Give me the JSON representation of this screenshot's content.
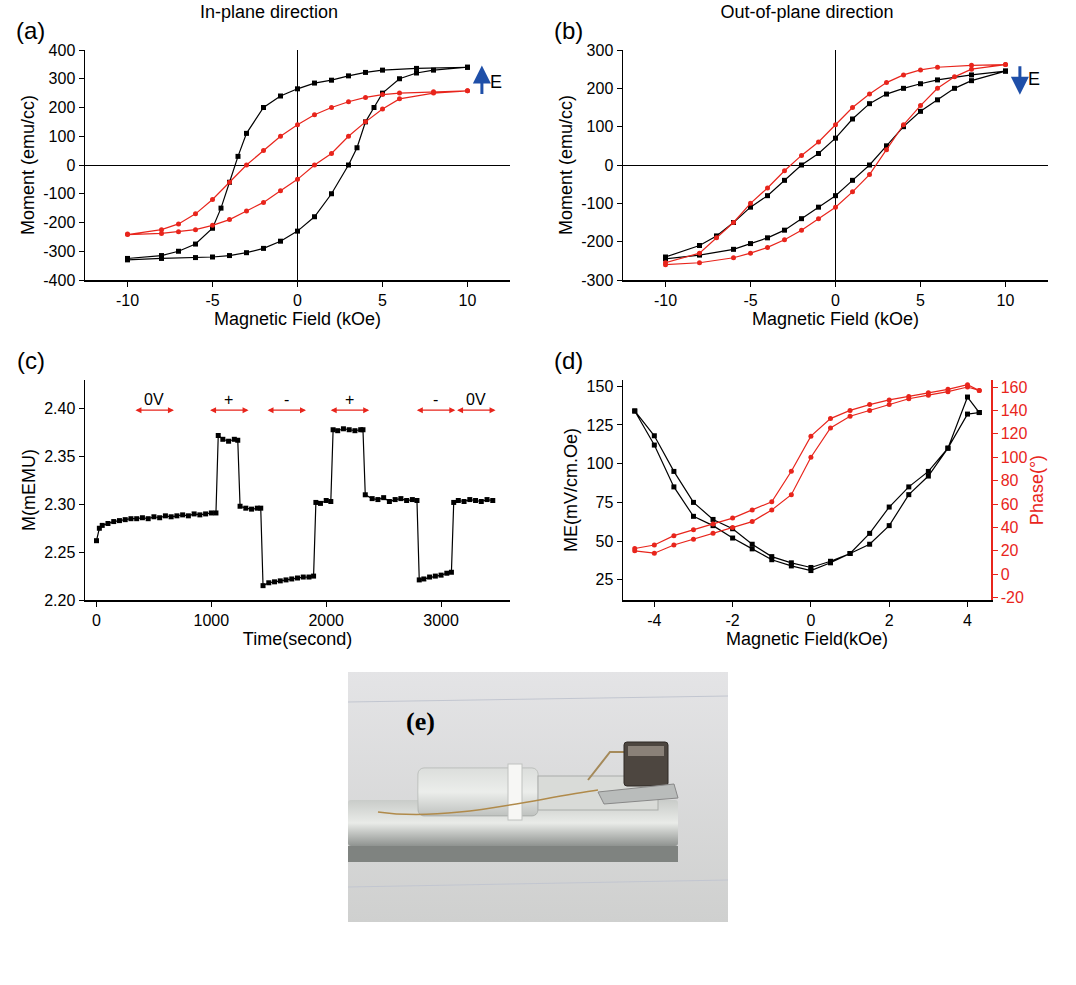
{
  "chart_data": [
    {
      "type": "line",
      "panel": "(a)",
      "title": "In-plane direction",
      "x_label": "Magnetic Field (kOe)",
      "y_label": "Moment (emu/cc)",
      "xlim": [
        -12.5,
        12.5
      ],
      "xticks": [
        -10,
        -5,
        0,
        5,
        10
      ],
      "ylim": [
        -400,
        400
      ],
      "yticks": [
        -400,
        -300,
        -200,
        -100,
        0,
        100,
        200,
        300,
        400
      ],
      "grid": false,
      "annotations": [
        {
          "text": "E",
          "x": 11.2,
          "y": 290
        }
      ],
      "series": [
        {
          "color": "#000000",
          "marker": "square",
          "x": [
            10,
            7,
            5,
            4,
            3,
            2,
            1,
            0,
            -1,
            -2,
            -3,
            -3.5,
            -4,
            -4.5,
            -5,
            -6,
            -7,
            -8,
            -10,
            -10,
            -8,
            -6,
            -5,
            -4,
            -3,
            -2,
            -1,
            0,
            1,
            2,
            3,
            3.5,
            4,
            4.5,
            5,
            6,
            7,
            8,
            10
          ],
          "values": [
            340,
            336,
            330,
            322,
            310,
            295,
            285,
            265,
            240,
            200,
            110,
            30,
            -60,
            -150,
            -220,
            -275,
            -300,
            -315,
            -325,
            -330,
            -325,
            -322,
            -320,
            -315,
            -305,
            -290,
            -265,
            -230,
            -180,
            -100,
            0,
            60,
            150,
            200,
            250,
            300,
            320,
            330,
            340
          ]
        },
        {
          "color": "#e8251c",
          "marker": "circle",
          "x": [
            10,
            8,
            6,
            5,
            4,
            3,
            2,
            1,
            0,
            -1,
            -2,
            -3,
            -4,
            -5,
            -6,
            -7,
            -8,
            -10,
            -10,
            -8,
            -7,
            -6,
            -5,
            -4,
            -3,
            -2,
            -1,
            0,
            1,
            2,
            3,
            4,
            5,
            6,
            8,
            10
          ],
          "values": [
            258,
            255,
            250,
            245,
            235,
            220,
            200,
            175,
            140,
            100,
            50,
            0,
            -60,
            -120,
            -170,
            -205,
            -225,
            -240,
            -242,
            -238,
            -232,
            -225,
            -210,
            -190,
            -160,
            -130,
            -90,
            -50,
            0,
            40,
            100,
            150,
            195,
            230,
            250,
            258
          ]
        }
      ]
    },
    {
      "type": "line",
      "panel": "(b)",
      "title": "Out-of-plane direction",
      "x_label": "Magnetic Field (kOe)",
      "y_label": "Moment (emu/cc)",
      "xlim": [
        -12.5,
        12.5
      ],
      "xticks": [
        -10,
        -5,
        0,
        5,
        10
      ],
      "ylim": [
        -300,
        300
      ],
      "yticks": [
        -300,
        -200,
        -100,
        0,
        100,
        200,
        300
      ],
      "grid": false,
      "annotations": [
        {
          "text": "E",
          "x": 11.2,
          "y": 225
        }
      ],
      "series": [
        {
          "color": "#000000",
          "marker": "square",
          "x": [
            10,
            8,
            6,
            5,
            4,
            3,
            2,
            1,
            0,
            -1,
            -2,
            -3,
            -4,
            -5,
            -6,
            -7,
            -8,
            -10,
            -10,
            -8,
            -6,
            -5,
            -4,
            -3,
            -2,
            -1,
            0,
            1,
            2,
            3,
            4,
            5,
            6,
            7,
            8,
            10
          ],
          "values": [
            245,
            235,
            222,
            212,
            200,
            185,
            160,
            120,
            70,
            30,
            0,
            -40,
            -80,
            -110,
            -150,
            -185,
            -210,
            -240,
            -245,
            -235,
            -220,
            -205,
            -190,
            -170,
            -140,
            -110,
            -80,
            -40,
            0,
            50,
            100,
            140,
            170,
            200,
            220,
            245
          ]
        },
        {
          "color": "#e8251c",
          "marker": "circle",
          "x": [
            10,
            8,
            6,
            5,
            4,
            3,
            2,
            1,
            0,
            -1,
            -2,
            -3,
            -4,
            -5,
            -6,
            -7,
            -8,
            -10,
            -10,
            -8,
            -6,
            -5,
            -4,
            -3,
            -2,
            -1,
            0,
            1,
            2,
            3,
            4,
            5,
            6,
            7,
            8,
            10
          ],
          "values": [
            262,
            260,
            255,
            248,
            235,
            215,
            185,
            150,
            105,
            60,
            25,
            -15,
            -60,
            -100,
            -150,
            -190,
            -230,
            -255,
            -260,
            -255,
            -242,
            -230,
            -215,
            -195,
            -170,
            -140,
            -110,
            -70,
            -25,
            40,
            105,
            155,
            200,
            230,
            250,
            262
          ]
        }
      ]
    },
    {
      "type": "line",
      "panel": "(c)",
      "x_label": "Time(second)",
      "y_label": "M(mEMU)",
      "xlim": [
        -100,
        3600
      ],
      "xticks": [
        0,
        1000,
        2000,
        3000
      ],
      "ylim": [
        2.2,
        2.43
      ],
      "yticks": [
        {
          "value": 2.2,
          "label": "2.20"
        },
        2.25,
        {
          "value": 2.3,
          "label": "2.30"
        },
        2.35,
        {
          "value": 2.4,
          "label": "2.40"
        }
      ],
      "grid": false,
      "annotations": [
        {
          "text": "0V",
          "x": 500,
          "y": 2.41
        },
        {
          "text": "+",
          "x": 1150,
          "y": 2.41
        },
        {
          "text": "-",
          "x": 1650,
          "y": 2.41
        },
        {
          "text": "+",
          "x": 2200,
          "y": 2.41
        },
        {
          "text": "-",
          "x": 2950,
          "y": 2.41
        },
        {
          "text": "0V",
          "x": 3300,
          "y": 2.41
        }
      ],
      "series": [
        {
          "color": "#000000",
          "marker": "square",
          "x": [
            0,
            25,
            50,
            100,
            150,
            200,
            250,
            300,
            350,
            400,
            450,
            500,
            550,
            600,
            650,
            700,
            750,
            800,
            850,
            900,
            950,
            1000,
            1040,
            1060,
            1100,
            1150,
            1200,
            1230,
            1250,
            1300,
            1350,
            1400,
            1430,
            1450,
            1500,
            1550,
            1600,
            1650,
            1700,
            1750,
            1800,
            1850,
            1890,
            1910,
            1950,
            2000,
            2040,
            2060,
            2100,
            2150,
            2200,
            2250,
            2300,
            2320,
            2340,
            2400,
            2450,
            2500,
            2550,
            2600,
            2650,
            2700,
            2750,
            2790,
            2810,
            2850,
            2900,
            2950,
            3000,
            3050,
            3090,
            3110,
            3150,
            3200,
            3250,
            3300,
            3350,
            3400,
            3450
          ],
          "values": [
            2.262,
            2.275,
            2.278,
            2.28,
            2.282,
            2.283,
            2.284,
            2.285,
            2.285,
            2.286,
            2.285,
            2.287,
            2.286,
            2.288,
            2.287,
            2.288,
            2.289,
            2.288,
            2.29,
            2.289,
            2.29,
            2.291,
            2.291,
            2.372,
            2.368,
            2.366,
            2.368,
            2.367,
            2.298,
            2.296,
            2.295,
            2.296,
            2.296,
            2.215,
            2.218,
            2.219,
            2.22,
            2.221,
            2.222,
            2.223,
            2.224,
            2.224,
            2.225,
            2.302,
            2.301,
            2.304,
            2.303,
            2.378,
            2.377,
            2.379,
            2.378,
            2.377,
            2.378,
            2.378,
            2.31,
            2.306,
            2.305,
            2.307,
            2.303,
            2.305,
            2.306,
            2.304,
            2.305,
            2.304,
            2.221,
            2.222,
            2.224,
            2.225,
            2.226,
            2.228,
            2.229,
            2.302,
            2.304,
            2.303,
            2.305,
            2.304,
            2.303,
            2.305,
            2.304
          ]
        }
      ]
    },
    {
      "type": "line",
      "panel": "(d)",
      "x_label": "Magnetic Field(kOe)",
      "y_label": "ME(mV/cm.Oe)",
      "y2_label": "Phase(°)",
      "xlim": [
        -4.8,
        4.6
      ],
      "xticks": [
        -4,
        -2,
        0,
        2,
        4
      ],
      "ylim": [
        12,
        154
      ],
      "yticks": [
        25,
        50,
        75,
        100,
        125,
        150
      ],
      "y2lim": [
        -22,
        166
      ],
      "y2ticks": [
        -20,
        0,
        20,
        40,
        60,
        80,
        100,
        120,
        140,
        160
      ],
      "grid": false,
      "series": [
        {
          "color": "#000000",
          "marker": "square",
          "x": [
            -4.5,
            -4,
            -3.5,
            -3,
            -2.5,
            -2,
            -1.5,
            -1,
            -0.5,
            0,
            0.5,
            1,
            1.5,
            2,
            2.5,
            3,
            3.5,
            4,
            4.3,
            4.3,
            4,
            3.5,
            3,
            2.5,
            2,
            1.5,
            1,
            0.5,
            0,
            -0.5,
            -1,
            -1.5,
            -2,
            -2.5,
            -3,
            -3.5,
            -4,
            -4.5
          ],
          "values": [
            134,
            118,
            95,
            75,
            64,
            58,
            48,
            40,
            36,
            33,
            37,
            42,
            48,
            60,
            80,
            92,
            110,
            143,
            133,
            133,
            132,
            110,
            95,
            85,
            72,
            55,
            42,
            36,
            31,
            34,
            38,
            45,
            52,
            60,
            66,
            85,
            112,
            134
          ]
        },
        {
          "color": "#e8251c",
          "marker": "circle",
          "axis": "y2",
          "x": [
            -4.5,
            -4,
            -3.5,
            -3,
            -2.5,
            -2,
            -1.5,
            -1,
            -0.5,
            0,
            0.5,
            1,
            1.5,
            2,
            2.5,
            3,
            3.5,
            4,
            4.3,
            4.3,
            4,
            3.5,
            3,
            2.5,
            2,
            1.5,
            1,
            0.5,
            0,
            -0.5,
            -1,
            -1.5,
            -2,
            -2.5,
            -3,
            -3.5,
            -4,
            -4.5
          ],
          "values": [
            20,
            18,
            25,
            30,
            35,
            40,
            45,
            55,
            68,
            100,
            125,
            135,
            140,
            145,
            150,
            153,
            156,
            160,
            157,
            157,
            162,
            158,
            155,
            152,
            149,
            145,
            140,
            133,
            118,
            88,
            62,
            55,
            48,
            43,
            38,
            33,
            25,
            22
          ]
        }
      ]
    }
  ],
  "photo": {
    "label": "(e)"
  }
}
